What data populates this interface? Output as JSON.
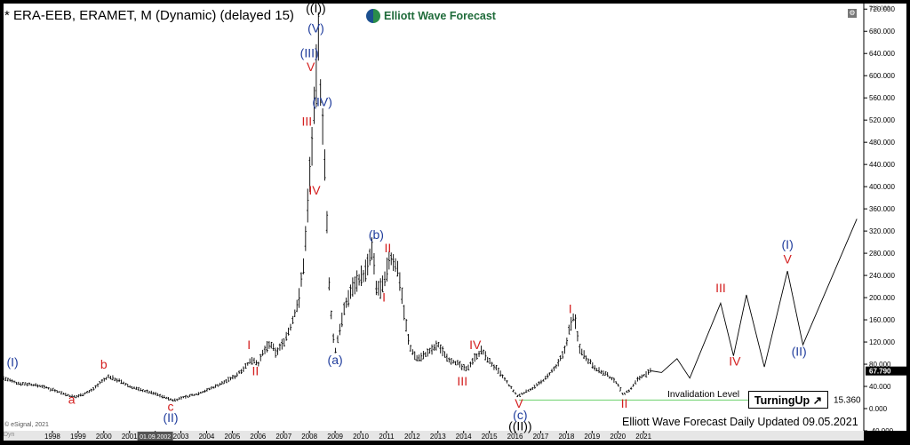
{
  "header": {
    "title": "* ERA-EEB, ERAMET, M (Dynamic) (delayed 15)",
    "logo_text": "Elliott Wave Forecast",
    "gear_icon": "gear-icon"
  },
  "footer": {
    "updated_text": "Elliott Wave Forecast Daily Updated 09.05.2021",
    "copyright": "© eSignal, 2021",
    "brand": "Dyn",
    "turning_up": "TurningUp ↗"
  },
  "chart_data": {
    "type": "line",
    "x_ticks": [
      "1998",
      "1999",
      "2000",
      "2001",
      "2002",
      "2003",
      "2004",
      "2005",
      "2006",
      "2007",
      "2008",
      "2009",
      "2010",
      "2011",
      "2012",
      "2013",
      "2014",
      "2015",
      "2016",
      "2017",
      "2018",
      "2019",
      "2020",
      "2021"
    ],
    "x_tick_overlay": "01.09.2002",
    "y_ticks": [
      -40,
      0,
      40,
      80,
      120,
      160,
      200,
      240,
      280,
      320,
      360,
      400,
      440,
      480,
      520,
      560,
      600,
      640,
      680,
      720
    ],
    "y_tick_labels": [
      "-40.000",
      "0.000",
      "40.000",
      "80.000",
      "120.000",
      "160.000",
      "200.000",
      "240.000",
      "280.000",
      "320.000",
      "360.000",
      "400.000",
      "440.000",
      "480.000",
      "520.000",
      "560.000",
      "600.000",
      "640.000",
      "680.000",
      "720.000"
    ],
    "ylim": [
      -40,
      730
    ],
    "xlim": [
      1996.1,
      2029.5
    ],
    "y_top_label": "738.083",
    "last_price": {
      "value": 67.79,
      "label": "67.790"
    },
    "invalidation": {
      "value": 15.36,
      "label": "15.360",
      "text": "Invalidation Level",
      "x_start": 2016.15,
      "x_end": 2026.2,
      "color": "#7cd67c"
    },
    "price_series": [
      [
        1996.1,
        55
      ],
      [
        1996.6,
        46
      ],
      [
        1997.1,
        44
      ],
      [
        1997.6,
        40
      ],
      [
        1998.1,
        33
      ],
      [
        1998.6,
        24
      ],
      [
        1998.9,
        21
      ],
      [
        1999.5,
        32
      ],
      [
        1999.9,
        48
      ],
      [
        2000.2,
        58
      ],
      [
        2000.6,
        50
      ],
      [
        2001.0,
        40
      ],
      [
        2001.5,
        33
      ],
      [
        2002.0,
        27
      ],
      [
        2002.5,
        18
      ],
      [
        2002.7,
        15
      ],
      [
        2003.1,
        20
      ],
      [
        2003.6,
        26
      ],
      [
        2004.1,
        35
      ],
      [
        2004.6,
        46
      ],
      [
        2005.1,
        58
      ],
      [
        2005.6,
        80
      ],
      [
        2005.8,
        90
      ],
      [
        2006.0,
        80
      ],
      [
        2006.3,
        110
      ],
      [
        2006.5,
        115
      ],
      [
        2006.7,
        100
      ],
      [
        2007.0,
        120
      ],
      [
        2007.3,
        150
      ],
      [
        2007.6,
        200
      ],
      [
        2007.8,
        270
      ],
      [
        2007.95,
        380
      ],
      [
        2008.1,
        480
      ],
      [
        2008.2,
        540
      ],
      [
        2008.3,
        630
      ],
      [
        2008.35,
        660
      ],
      [
        2008.42,
        580
      ],
      [
        2008.55,
        500
      ],
      [
        2008.65,
        380
      ],
      [
        2008.75,
        230
      ],
      [
        2008.9,
        140
      ],
      [
        2009.0,
        100
      ],
      [
        2009.2,
        150
      ],
      [
        2009.5,
        200
      ],
      [
        2009.8,
        230
      ],
      [
        2010.1,
        240
      ],
      [
        2010.3,
        260
      ],
      [
        2010.45,
        290
      ],
      [
        2010.6,
        215
      ],
      [
        2010.9,
        220
      ],
      [
        2011.1,
        270
      ],
      [
        2011.3,
        265
      ],
      [
        2011.5,
        240
      ],
      [
        2011.7,
        170
      ],
      [
        2011.9,
        110
      ],
      [
        2012.2,
        90
      ],
      [
        2012.6,
        100
      ],
      [
        2013.0,
        115
      ],
      [
        2013.4,
        90
      ],
      [
        2013.8,
        80
      ],
      [
        2014.1,
        70
      ],
      [
        2014.4,
        90
      ],
      [
        2014.7,
        105
      ],
      [
        2015.0,
        85
      ],
      [
        2015.4,
        65
      ],
      [
        2015.8,
        40
      ],
      [
        2016.1,
        22
      ],
      [
        2016.4,
        30
      ],
      [
        2016.8,
        40
      ],
      [
        2017.2,
        55
      ],
      [
        2017.6,
        75
      ],
      [
        2017.9,
        100
      ],
      [
        2018.1,
        140
      ],
      [
        2018.3,
        170
      ],
      [
        2018.5,
        110
      ],
      [
        2018.8,
        90
      ],
      [
        2019.2,
        70
      ],
      [
        2019.6,
        60
      ],
      [
        2020.0,
        45
      ],
      [
        2020.2,
        25
      ],
      [
        2020.5,
        35
      ],
      [
        2020.8,
        55
      ],
      [
        2021.1,
        62
      ],
      [
        2021.3,
        68
      ]
    ],
    "projection": [
      [
        2021.3,
        68
      ],
      [
        2021.7,
        65
      ],
      [
        2022.3,
        90
      ],
      [
        2022.8,
        55
      ],
      [
        2024.0,
        190
      ],
      [
        2024.5,
        95
      ],
      [
        2025.0,
        205
      ],
      [
        2025.7,
        75
      ],
      [
        2026.6,
        248
      ],
      [
        2027.2,
        115
      ],
      [
        2029.3,
        342
      ]
    ],
    "wave_labels": [
      {
        "text": "(I)",
        "x": 1996.45,
        "y": 76,
        "color": "#1f3c9c"
      },
      {
        "text": "a",
        "x": 1998.75,
        "y": 9,
        "color": "#d42020"
      },
      {
        "text": "b",
        "x": 2000.0,
        "y": 72,
        "color": "#d42020"
      },
      {
        "text": "c",
        "x": 2002.6,
        "y": -4,
        "color": "#d42020"
      },
      {
        "text": "(II)",
        "x": 2002.6,
        "y": -24,
        "color": "#1f3c9c"
      },
      {
        "text": "I",
        "x": 2005.65,
        "y": 107,
        "color": "#d42020"
      },
      {
        "text": "II",
        "x": 2005.9,
        "y": 60,
        "color": "#d42020"
      },
      {
        "text": "III",
        "x": 2007.9,
        "y": 510,
        "color": "#d42020"
      },
      {
        "text": "IV",
        "x": 2008.2,
        "y": 386,
        "color": "#d42020"
      },
      {
        "text": "V",
        "x": 2008.05,
        "y": 608,
        "color": "#d42020"
      },
      {
        "text": "(III)",
        "x": 2008.0,
        "y": 633,
        "color": "#1f3c9c"
      },
      {
        "text": "(IV)",
        "x": 2008.5,
        "y": 545,
        "color": "#1f3c9c"
      },
      {
        "text": "(V)",
        "x": 2008.25,
        "y": 678,
        "color": "#1f3c9c"
      },
      {
        "text": "((I))",
        "x": 2008.25,
        "y": 714,
        "color": "#000000"
      },
      {
        "text": "(a)",
        "x": 2009.0,
        "y": 80,
        "color": "#1f3c9c"
      },
      {
        "text": "(b)",
        "x": 2010.6,
        "y": 306,
        "color": "#1f3c9c"
      },
      {
        "text": "II",
        "x": 2011.05,
        "y": 282,
        "color": "#d42020"
      },
      {
        "text": "I",
        "x": 2010.9,
        "y": 193,
        "color": "#d42020"
      },
      {
        "text": "III",
        "x": 2013.95,
        "y": 42,
        "color": "#d42020"
      },
      {
        "text": "IV",
        "x": 2014.45,
        "y": 107,
        "color": "#d42020"
      },
      {
        "text": "V",
        "x": 2016.15,
        "y": 2,
        "color": "#d42020"
      },
      {
        "text": "(c)",
        "x": 2016.2,
        "y": -19,
        "color": "#1f3c9c"
      },
      {
        "text": "((II))",
        "x": 2016.2,
        "y": -39,
        "color": "#000000"
      },
      {
        "text": "I",
        "x": 2018.15,
        "y": 172,
        "color": "#d42020"
      },
      {
        "text": "II",
        "x": 2020.25,
        "y": 2,
        "color": "#d42020"
      },
      {
        "text": "III",
        "x": 2024.0,
        "y": 210,
        "color": "#d42020"
      },
      {
        "text": "IV",
        "x": 2024.55,
        "y": 78,
        "color": "#d42020"
      },
      {
        "text": "V",
        "x": 2026.6,
        "y": 262,
        "color": "#d42020"
      },
      {
        "text": "(I)",
        "x": 2026.6,
        "y": 288,
        "color": "#1f3c9c"
      },
      {
        "text": "(II)",
        "x": 2027.05,
        "y": 95,
        "color": "#1f3c9c"
      }
    ]
  }
}
